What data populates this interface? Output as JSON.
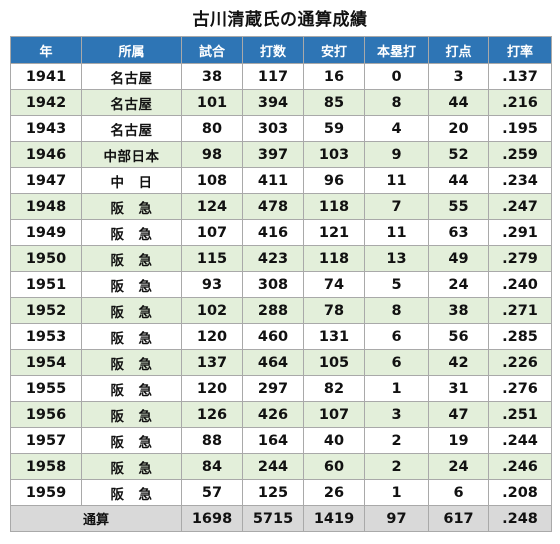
{
  "title": "古川清蔵氏の通算成績",
  "table": {
    "headers": [
      "年",
      "所属",
      "試合",
      "打数",
      "安打",
      "本塁打",
      "打点",
      "打率"
    ],
    "rows": [
      [
        "1941",
        "名古屋",
        "38",
        "117",
        "16",
        "0",
        "3",
        ".137"
      ],
      [
        "1942",
        "名古屋",
        "101",
        "394",
        "85",
        "8",
        "44",
        ".216"
      ],
      [
        "1943",
        "名古屋",
        "80",
        "303",
        "59",
        "4",
        "20",
        ".195"
      ],
      [
        "1946",
        "中部日本",
        "98",
        "397",
        "103",
        "9",
        "52",
        ".259"
      ],
      [
        "1947",
        "中　日",
        "108",
        "411",
        "96",
        "11",
        "44",
        ".234"
      ],
      [
        "1948",
        "阪　急",
        "124",
        "478",
        "118",
        "7",
        "55",
        ".247"
      ],
      [
        "1949",
        "阪　急",
        "107",
        "416",
        "121",
        "11",
        "63",
        ".291"
      ],
      [
        "1950",
        "阪　急",
        "115",
        "423",
        "118",
        "13",
        "49",
        ".279"
      ],
      [
        "1951",
        "阪　急",
        "93",
        "308",
        "74",
        "5",
        "24",
        ".240"
      ],
      [
        "1952",
        "阪　急",
        "102",
        "288",
        "78",
        "8",
        "38",
        ".271"
      ],
      [
        "1953",
        "阪　急",
        "120",
        "460",
        "131",
        "6",
        "56",
        ".285"
      ],
      [
        "1954",
        "阪　急",
        "137",
        "464",
        "105",
        "6",
        "42",
        ".226"
      ],
      [
        "1955",
        "阪　急",
        "120",
        "297",
        "82",
        "1",
        "31",
        ".276"
      ],
      [
        "1956",
        "阪　急",
        "126",
        "426",
        "107",
        "3",
        "47",
        ".251"
      ],
      [
        "1957",
        "阪　急",
        "88",
        "164",
        "40",
        "2",
        "19",
        ".244"
      ],
      [
        "1958",
        "阪　急",
        "84",
        "244",
        "60",
        "2",
        "24",
        ".246"
      ],
      [
        "1959",
        "阪　急",
        "57",
        "125",
        "26",
        "1",
        "6",
        ".208"
      ]
    ],
    "totals": {
      "label": "通算",
      "values": [
        "1698",
        "5715",
        "1419",
        "97",
        "617",
        ".248"
      ]
    }
  },
  "colors": {
    "header_bg": "#2e75b5",
    "row_alt_bg": "#e3efda",
    "total_bg": "#d9d9d9"
  }
}
